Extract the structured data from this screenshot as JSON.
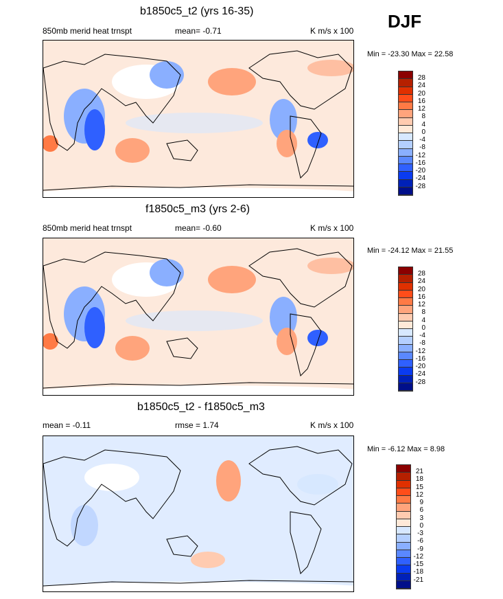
{
  "season": "DJF",
  "colors": [
    "#8b0000",
    "#b52000",
    "#e03000",
    "#ff4d1a",
    "#ff7a45",
    "#ffa47c",
    "#ffcbb0",
    "#ffe9d8",
    "#d7e8ff",
    "#b4cfff",
    "#8aafff",
    "#5a88ff",
    "#2f60ff",
    "#0a3bf0",
    "#0021b8",
    "#000f8a"
  ],
  "panels": [
    {
      "title": "b1850c5_t2 (yrs 16-35)",
      "left": "850mb merid heat trnspt",
      "mid": "mean=  -0.71",
      "right": "K m/s x 100",
      "minmax": "Min = -23.30 Max =  22.58",
      "levels": [
        "28",
        "24",
        "20",
        "16",
        "12",
        "8",
        "4",
        "0",
        "-4",
        "-8",
        "-12",
        "-16",
        "-20",
        "-24",
        "-28"
      ]
    },
    {
      "title": "f1850c5_m3 (yrs 2-6)",
      "left": "850mb merid heat trnspt",
      "mid": "mean=  -0.60",
      "right": "K m/s x 100",
      "minmax": "Min = -24.12 Max =  21.55",
      "levels": [
        "28",
        "24",
        "20",
        "16",
        "12",
        "8",
        "4",
        "0",
        "-4",
        "-8",
        "-12",
        "-16",
        "-20",
        "-24",
        "-28"
      ]
    },
    {
      "title": "b1850c5_t2 - f1850c5_m3",
      "left": "mean =  -0.11",
      "mid": "rmse =   1.74",
      "right": "K m/s x 100",
      "minmax": "Min =  -6.12 Max =   8.98",
      "levels": [
        "21",
        "18",
        "15",
        "12",
        "9",
        "6",
        "3",
        "0",
        "-3",
        "-6",
        "-9",
        "-12",
        "-15",
        "-18",
        "-21"
      ]
    }
  ]
}
